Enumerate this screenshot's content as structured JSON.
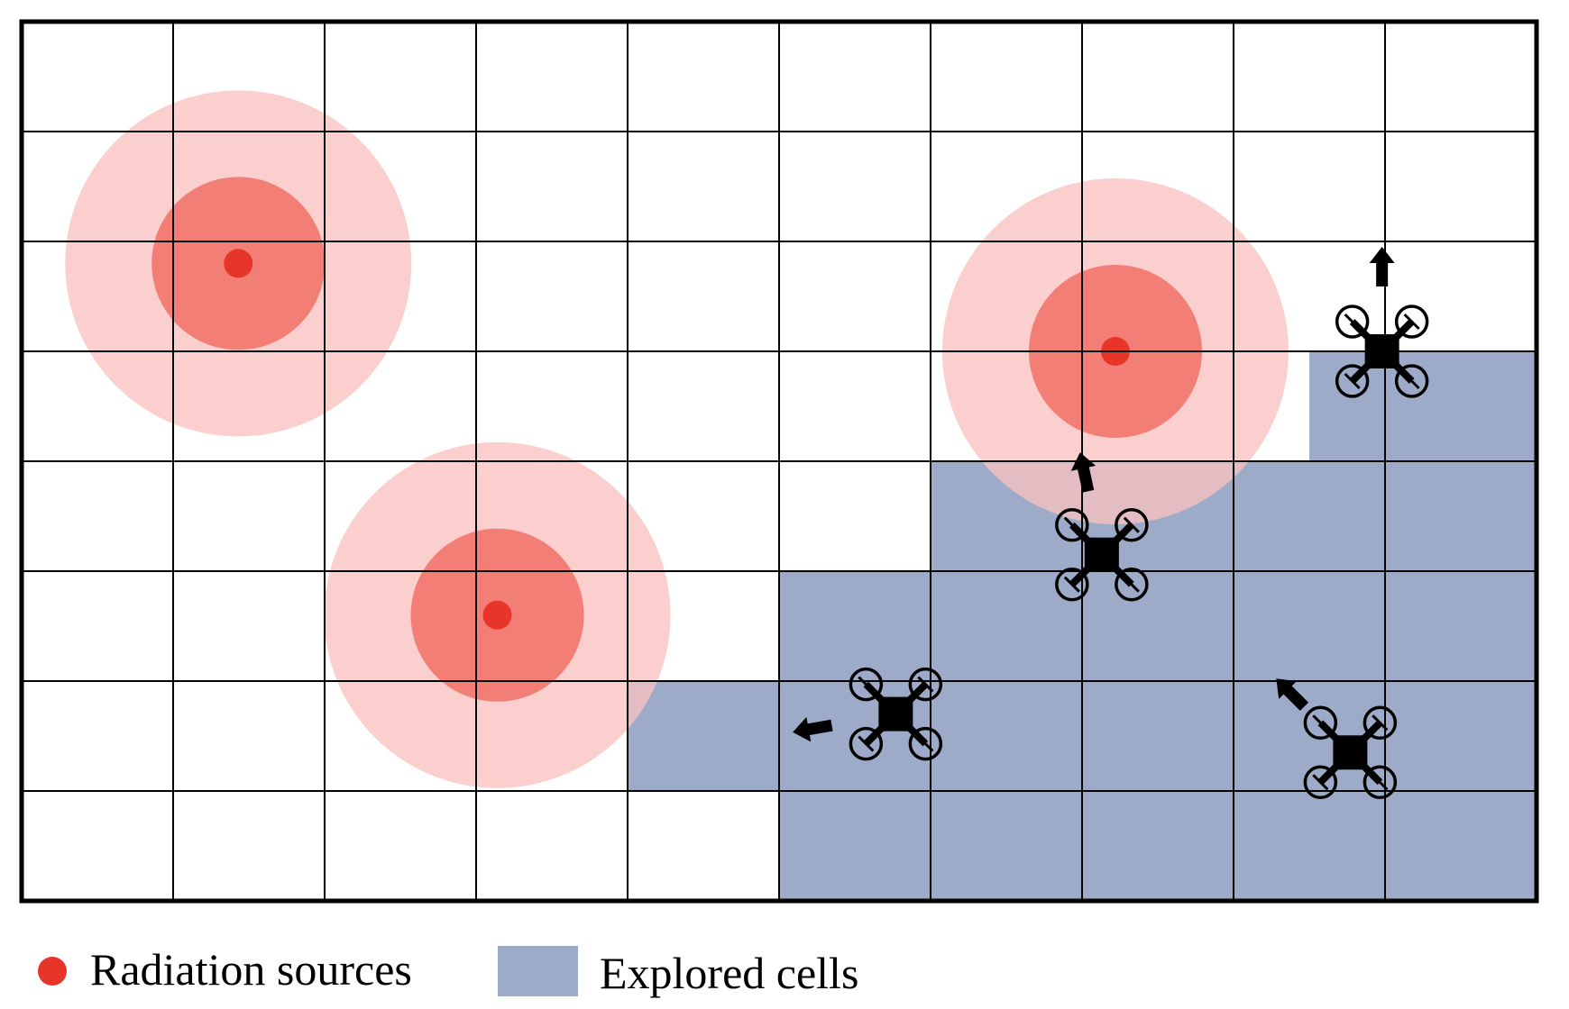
{
  "grid": {
    "columns": 10,
    "rows": 8,
    "explored_cells": [
      [
        3,
        9
      ],
      [
        4,
        6
      ],
      [
        4,
        7
      ],
      [
        4,
        8
      ],
      [
        4,
        9
      ],
      [
        5,
        5
      ],
      [
        5,
        6
      ],
      [
        5,
        7
      ],
      [
        5,
        8
      ],
      [
        5,
        9
      ],
      [
        6,
        4
      ],
      [
        6,
        5
      ],
      [
        6,
        6
      ],
      [
        6,
        7
      ],
      [
        6,
        8
      ],
      [
        6,
        9
      ],
      [
        7,
        5
      ],
      [
        7,
        6
      ],
      [
        7,
        7
      ],
      [
        7,
        8
      ],
      [
        7,
        9
      ]
    ],
    "partial_explored_cells": [
      [
        3,
        8
      ]
    ]
  },
  "radiation_sources": [
    {
      "col": 1.43,
      "row": 2.2
    },
    {
      "col": 3.14,
      "row": 5.4
    },
    {
      "col": 7.22,
      "row": 3.0
    }
  ],
  "drones": [
    {
      "col": 5.77,
      "row": 6.3,
      "heading_deg": 260
    },
    {
      "col": 7.13,
      "row": 4.85,
      "heading_deg": 348
    },
    {
      "col": 8.77,
      "row": 6.65,
      "heading_deg": 315
    },
    {
      "col": 8.98,
      "row": 3.0,
      "heading_deg": 0
    }
  ],
  "colors": {
    "grid_line": "#000000",
    "explored": "#9dabc9",
    "radiation_outer": "#f8c2c0",
    "radiation_inner": "#f16b61",
    "radiation_core": "#e8352a",
    "drone": "#000000"
  },
  "legend": {
    "radiation_label": "Radiation sources",
    "explored_label": "Explored cells"
  }
}
